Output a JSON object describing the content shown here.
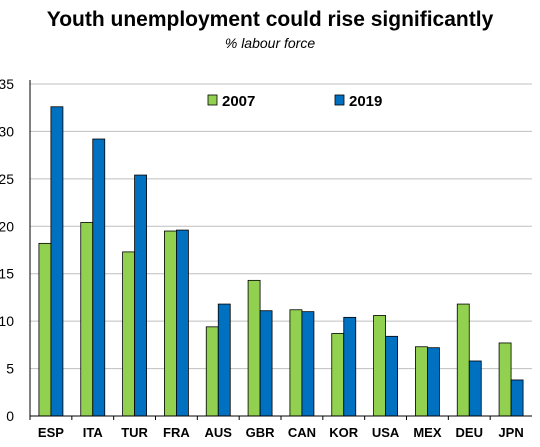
{
  "chart_data": {
    "type": "bar",
    "title": "Youth unemployment could rise significantly",
    "subtitle": "% labour force",
    "xlabel": "",
    "ylabel": "",
    "ylim": [
      0,
      35
    ],
    "yticks": [
      "0",
      "5",
      "10",
      "15",
      "20",
      "25",
      "30",
      "35"
    ],
    "grid": true,
    "legend": "top-center",
    "categories": [
      "ESP",
      "ITA",
      "TUR",
      "FRA",
      "AUS",
      "GBR",
      "CAN",
      "KOR",
      "USA",
      "MEX",
      "DEU",
      "JPN"
    ],
    "series": [
      {
        "name": "2007",
        "color": "#92d050",
        "values": [
          18.2,
          20.4,
          17.3,
          19.5,
          9.4,
          14.3,
          11.2,
          8.7,
          10.6,
          7.3,
          11.8,
          7.7
        ]
      },
      {
        "name": "2019",
        "color": "#0070c0",
        "values": [
          32.6,
          29.2,
          25.4,
          19.6,
          11.8,
          11.1,
          11.0,
          10.4,
          8.4,
          7.2,
          5.8,
          3.8
        ]
      }
    ]
  }
}
